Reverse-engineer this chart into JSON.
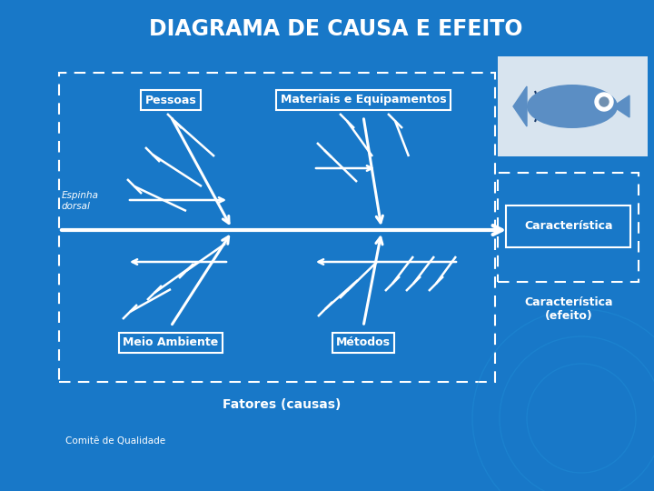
{
  "title": "DIAGRAMA DE CAUSA E EFEITO",
  "bg_color": "#1878c8",
  "line_color": "white",
  "labels": {
    "pessoas": "Pessoas",
    "materiais": "Materiais e Equipamentos",
    "meio": "Meio Ambiente",
    "metodos": "Métodos",
    "espinha": "Espinha\ndorsal",
    "caracteristica": "Característica",
    "caracteristica_efeito": "Característica\n(efeito)",
    "fatores": "Fatores (causas)",
    "comite": "Comitê de Qualidade"
  }
}
